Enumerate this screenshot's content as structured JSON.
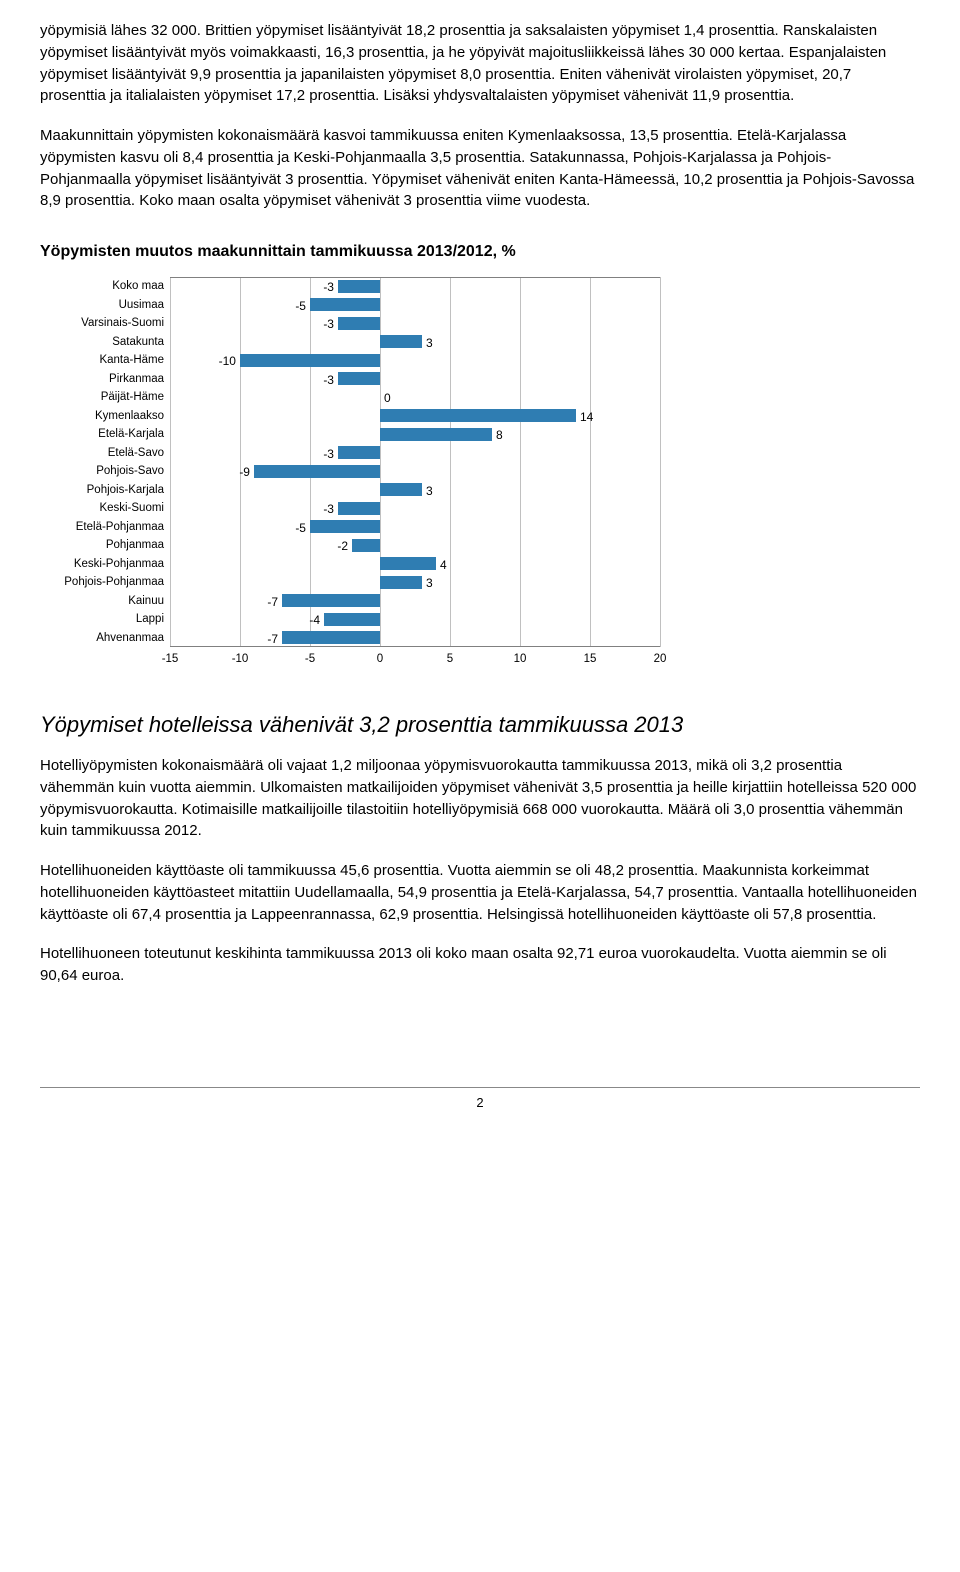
{
  "para1": "yöpymisiä lähes 32 000. Brittien yöpymiset lisääntyivät 18,2 prosenttia ja saksalaisten yöpymiset 1,4 prosenttia. Ranskalaisten yöpymiset lisääntyivät myös voimakkaasti, 16,3 prosenttia, ja he yöpyivät majoitusliikkeissä lähes 30 000 kertaa. Espanjalaisten yöpymiset lisääntyivät 9,9 prosenttia ja japanilaisten yöpymiset 8,0 prosenttia. Eniten vähenivät virolaisten yöpymiset, 20,7 prosenttia ja italialaisten yöpymiset 17,2 prosenttia. Lisäksi yhdysvaltalaisten yöpymiset vähenivät 11,9 prosenttia.",
  "para2": "Maakunnittain yöpymisten kokonaismäärä kasvoi tammikuussa eniten Kymenlaaksossa, 13,5 prosenttia. Etelä-Karjalassa yöpymisten kasvu oli 8,4 prosenttia ja Keski-Pohjanmaalla 3,5 prosenttia. Satakunnassa, Pohjois-Karjalassa ja Pohjois-Pohjanmaalla yöpymiset lisääntyivät 3 prosenttia. Yöpymiset vähenivät eniten Kanta-Hämeessä, 10,2 prosenttia ja Pohjois-Savossa 8,9 prosenttia. Koko maan osalta yöpymiset vähenivät 3 prosenttia viime vuodesta.",
  "chart_title": "Yöpymisten muutos maakunnittain tammikuussa 2013/2012, %",
  "subhead": "Yöpymiset hotelleissa vähenivät 3,2 prosenttia tammikuussa 2013",
  "para3": "Hotelliyöpymisten kokonaismäärä oli vajaat 1,2 miljoonaa yöpymisvuorokautta tammikuussa 2013, mikä oli 3,2 prosenttia vähemmän kuin vuotta aiemmin. Ulkomaisten matkailijoiden yöpymiset vähenivät 3,5 prosenttia ja heille kirjattiin hotelleissa 520 000 yöpymisvuorokautta. Kotimaisille matkailijoille tilastoitiin hotelliyöpymisiä 668 000 vuorokautta. Määrä oli 3,0 prosenttia vähemmän kuin tammikuussa 2012.",
  "para4": "Hotellihuoneiden käyttöaste oli tammikuussa 45,6 prosenttia. Vuotta aiemmin se oli 48,2 prosenttia. Maakunnista korkeimmat hotellihuoneiden käyttöasteet mitattiin Uudellamaalla, 54,9 prosenttia ja Etelä-Karjalassa, 54,7 prosenttia. Vantaalla hotellihuoneiden käyttöaste oli 67,4 prosenttia ja Lappeenrannassa, 62,9 prosenttia. Helsingissä hotellihuoneiden käyttöaste oli 57,8 prosenttia.",
  "para5": "Hotellihuoneen toteutunut keskihinta tammikuussa 2013 oli koko maan osalta 92,71 euroa vuorokaudelta. Vuotta aiemmin se oli 90,64 euroa.",
  "page_number": "2",
  "chart": {
    "type": "bar-horizontal",
    "bar_color": "#2f7db2",
    "grid_color": "#c0c0c0",
    "text_color": "#000000",
    "label_fontsize": 11.5,
    "xmin": -15,
    "xmax": 20,
    "xtick_step": 5,
    "xticks": [
      -15,
      -10,
      -5,
      0,
      5,
      10,
      15,
      20
    ],
    "categories": [
      "Koko maa",
      "Uusimaa",
      "Varsinais-Suomi",
      "Satakunta",
      "Kanta-Häme",
      "Pirkanmaa",
      "Päijät-Häme",
      "Kymenlaakso",
      "Etelä-Karjala",
      "Etelä-Savo",
      "Pohjois-Savo",
      "Pohjois-Karjala",
      "Keski-Suomi",
      "Etelä-Pohjanmaa",
      "Pohjanmaa",
      "Keski-Pohjanmaa",
      "Pohjois-Pohjanmaa",
      "Kainuu",
      "Lappi",
      "Ahvenanmaa"
    ],
    "values": [
      -3,
      -5,
      -3,
      3,
      -10,
      -3,
      0,
      14,
      8,
      -3,
      -9,
      3,
      -3,
      -5,
      -2,
      4,
      3,
      -7,
      -4,
      -7
    ]
  }
}
